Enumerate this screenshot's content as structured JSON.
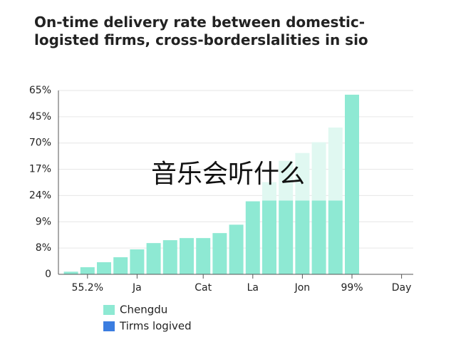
{
  "chart_data": {
    "type": "bar",
    "title": [
      "On-time delivery rate between domestic-",
      "logisted firms, cross-borderslalities in sio"
    ],
    "annotation": "音乐会听什么",
    "categories": [
      null,
      "55.2%",
      null,
      null,
      "Ja",
      null,
      null,
      null,
      "Cat",
      null,
      null,
      "La",
      null,
      null,
      "Jon",
      null,
      null,
      "99%",
      null,
      null,
      "Day"
    ],
    "series": [
      {
        "name": "Chengdu",
        "color": "#8ee9d3",
        "values": [
          0.1,
          0.27,
          0.46,
          0.65,
          0.95,
          1.19,
          1.3,
          1.38,
          1.38,
          1.57,
          1.89,
          2.78,
          2.81,
          2.81,
          2.81,
          2.81,
          2.81,
          6.84,
          null,
          null,
          null
        ]
      },
      {
        "name": "Tirms logived",
        "color": "#3b7de0",
        "fill": "#e0f8f1",
        "values": [
          0,
          0,
          0,
          0,
          0,
          0,
          0,
          0,
          0,
          0,
          0,
          0,
          0.7,
          1.51,
          1.81,
          2.22,
          2.78,
          0,
          null,
          null,
          null
        ]
      }
    ],
    "stacked": true,
    "ylim": [
      0,
      7
    ],
    "yticks": [
      0,
      {
        "value": 1,
        "label": "8%"
      },
      {
        "value": 2,
        "label": "9%"
      },
      {
        "value": 3,
        "label": "24%"
      },
      {
        "value": 4,
        "label": "17%"
      },
      {
        "value": 5,
        "label": "70%"
      },
      {
        "value": 6,
        "label": "45%"
      },
      {
        "value": 7,
        "label": "65%"
      }
    ],
    "grid": true
  }
}
